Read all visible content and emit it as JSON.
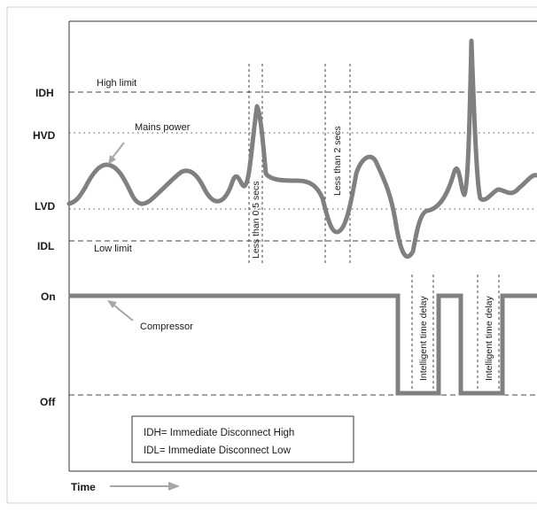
{
  "levels": {
    "idh": "IDH",
    "hvd": "HVD",
    "lvd": "LVD",
    "idl": "IDL",
    "on": "On",
    "off": "Off"
  },
  "labels": {
    "high_limit": "High limit",
    "low_limit": "Low limit",
    "mains_power": "Mains power",
    "compressor": "Compressor",
    "less_half_sec": "Less than 0.5 secs",
    "less_two_secs": "Less than 2 secs",
    "time_delay": "Intelligent time delay",
    "time": "Time"
  },
  "legend": {
    "line1": "IDH= Immediate Disconnect High",
    "line2": "IDL= Immediate Disconnect Low"
  },
  "colors": {
    "signal": "#808080",
    "arrow": "#a6a6a6",
    "frame": "#333333",
    "guide": "#444444"
  }
}
